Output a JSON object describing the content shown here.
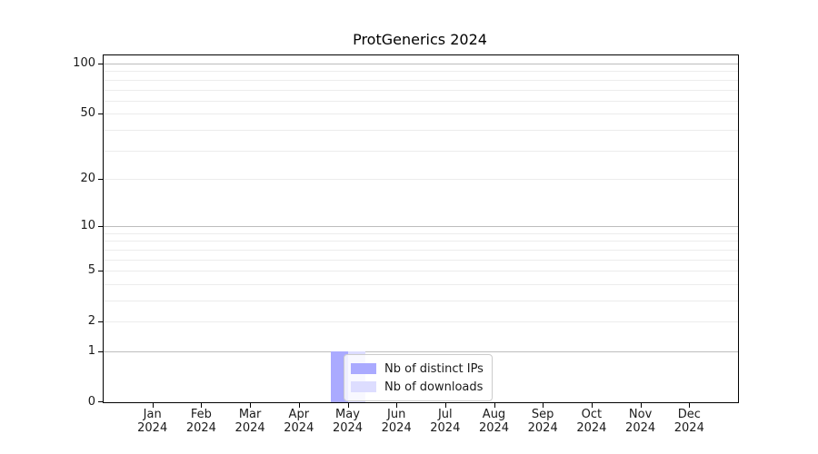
{
  "chart_data": {
    "type": "bar",
    "title": "ProtGenerics 2024",
    "xlabel": "",
    "ylabel": "",
    "x_categories": [
      "Jan 2024",
      "Feb 2024",
      "Mar 2024",
      "Apr 2024",
      "May 2024",
      "Jun 2024",
      "Jul 2024",
      "Aug 2024",
      "Sep 2024",
      "Oct 2024",
      "Nov 2024",
      "Dec 2024"
    ],
    "series": [
      {
        "name": "Nb of distinct IPs",
        "color": "#aaaaff",
        "values": [
          0,
          0,
          0,
          0,
          1,
          0,
          0,
          0,
          0,
          0,
          0,
          0
        ]
      },
      {
        "name": "Nb of downloads",
        "color": "#ddddff",
        "values": [
          0,
          0,
          0,
          0,
          1,
          0,
          0,
          0,
          0,
          0,
          0,
          0
        ]
      }
    ],
    "y_scale": "log10(value+1)",
    "ylim": [
      0,
      100
    ],
    "y_tick_values": [
      0,
      1,
      2,
      5,
      10,
      20,
      50,
      100
    ],
    "y_tick_labels": [
      "0",
      "1",
      "2",
      "5",
      "10",
      "20",
      "50",
      "100"
    ],
    "y_major_grid_values": [
      1,
      10,
      100
    ],
    "y_minor_grid_values": [
      2,
      3,
      4,
      5,
      6,
      7,
      8,
      9,
      20,
      30,
      40,
      50,
      60,
      70,
      80,
      90
    ],
    "grid": "horizontal only",
    "legend_position": "lower center",
    "colors": {
      "background": "#ffffff",
      "spine": "#000000",
      "major_grid": "#bdbdbd",
      "minor_grid": "#ececec",
      "text": "#1a1a1a",
      "legend_border": "#cccccc"
    }
  }
}
